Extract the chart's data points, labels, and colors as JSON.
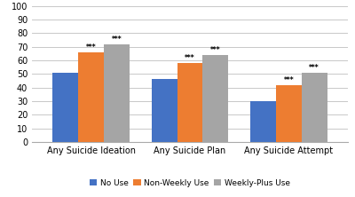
{
  "categories": [
    "Any Suicide Ideation",
    "Any Suicide Plan",
    "Any Suicide Attempt"
  ],
  "series": {
    "No Use": [
      51,
      46,
      30
    ],
    "Non-Weekly Use": [
      66,
      58,
      42
    ],
    "Weekly-Plus Use": [
      72,
      64,
      51
    ]
  },
  "colors": {
    "No Use": "#4472C4",
    "Non-Weekly Use": "#ED7D31",
    "Weekly-Plus Use": "#A5A5A5"
  },
  "annotations": {
    "Non-Weekly Use": [
      "***",
      "***",
      "***"
    ],
    "Weekly-Plus Use": [
      "***",
      "***",
      "***"
    ]
  },
  "ylim": [
    0,
    100
  ],
  "yticks": [
    0,
    10,
    20,
    30,
    40,
    50,
    60,
    70,
    80,
    90,
    100
  ],
  "legend_labels": [
    "No Use",
    "Non-Weekly Use",
    "Weekly-Plus Use"
  ],
  "bar_width": 0.26,
  "annotation_fontsize": 5.5,
  "axis_fontsize": 7.0,
  "legend_fontsize": 6.5,
  "tick_fontsize": 7
}
